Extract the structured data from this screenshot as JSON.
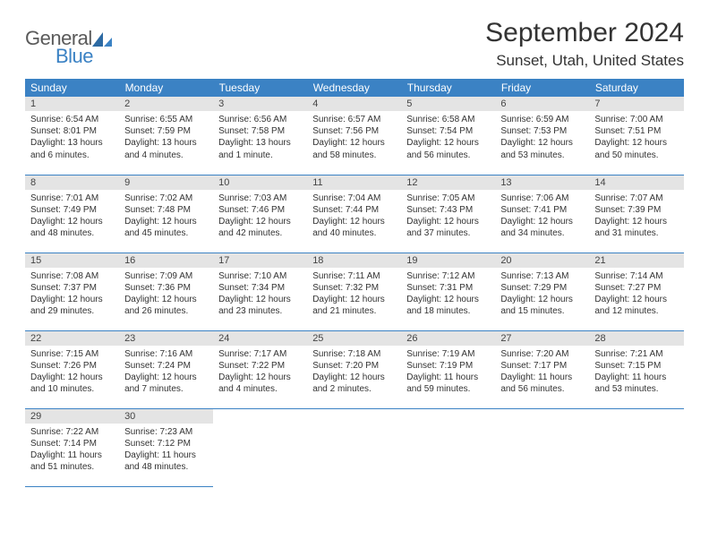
{
  "brand": {
    "general": "General",
    "blue": "Blue"
  },
  "title": {
    "month": "September 2024",
    "location": "Sunset, Utah, United States"
  },
  "colors": {
    "header_bg": "#3b82c4",
    "header_fg": "#ffffff",
    "daynum_bg": "#e4e4e4",
    "rule": "#3b82c4",
    "text": "#333333",
    "logo_gray": "#5a5a5a",
    "logo_blue": "#3b82c4"
  },
  "weekdays": [
    "Sunday",
    "Monday",
    "Tuesday",
    "Wednesday",
    "Thursday",
    "Friday",
    "Saturday"
  ],
  "days": [
    {
      "n": "1",
      "sr": "6:54 AM",
      "ss": "8:01 PM",
      "dl": "13 hours and 6 minutes."
    },
    {
      "n": "2",
      "sr": "6:55 AM",
      "ss": "7:59 PM",
      "dl": "13 hours and 4 minutes."
    },
    {
      "n": "3",
      "sr": "6:56 AM",
      "ss": "7:58 PM",
      "dl": "13 hours and 1 minute."
    },
    {
      "n": "4",
      "sr": "6:57 AM",
      "ss": "7:56 PM",
      "dl": "12 hours and 58 minutes."
    },
    {
      "n": "5",
      "sr": "6:58 AM",
      "ss": "7:54 PM",
      "dl": "12 hours and 56 minutes."
    },
    {
      "n": "6",
      "sr": "6:59 AM",
      "ss": "7:53 PM",
      "dl": "12 hours and 53 minutes."
    },
    {
      "n": "7",
      "sr": "7:00 AM",
      "ss": "7:51 PM",
      "dl": "12 hours and 50 minutes."
    },
    {
      "n": "8",
      "sr": "7:01 AM",
      "ss": "7:49 PM",
      "dl": "12 hours and 48 minutes."
    },
    {
      "n": "9",
      "sr": "7:02 AM",
      "ss": "7:48 PM",
      "dl": "12 hours and 45 minutes."
    },
    {
      "n": "10",
      "sr": "7:03 AM",
      "ss": "7:46 PM",
      "dl": "12 hours and 42 minutes."
    },
    {
      "n": "11",
      "sr": "7:04 AM",
      "ss": "7:44 PM",
      "dl": "12 hours and 40 minutes."
    },
    {
      "n": "12",
      "sr": "7:05 AM",
      "ss": "7:43 PM",
      "dl": "12 hours and 37 minutes."
    },
    {
      "n": "13",
      "sr": "7:06 AM",
      "ss": "7:41 PM",
      "dl": "12 hours and 34 minutes."
    },
    {
      "n": "14",
      "sr": "7:07 AM",
      "ss": "7:39 PM",
      "dl": "12 hours and 31 minutes."
    },
    {
      "n": "15",
      "sr": "7:08 AM",
      "ss": "7:37 PM",
      "dl": "12 hours and 29 minutes."
    },
    {
      "n": "16",
      "sr": "7:09 AM",
      "ss": "7:36 PM",
      "dl": "12 hours and 26 minutes."
    },
    {
      "n": "17",
      "sr": "7:10 AM",
      "ss": "7:34 PM",
      "dl": "12 hours and 23 minutes."
    },
    {
      "n": "18",
      "sr": "7:11 AM",
      "ss": "7:32 PM",
      "dl": "12 hours and 21 minutes."
    },
    {
      "n": "19",
      "sr": "7:12 AM",
      "ss": "7:31 PM",
      "dl": "12 hours and 18 minutes."
    },
    {
      "n": "20",
      "sr": "7:13 AM",
      "ss": "7:29 PM",
      "dl": "12 hours and 15 minutes."
    },
    {
      "n": "21",
      "sr": "7:14 AM",
      "ss": "7:27 PM",
      "dl": "12 hours and 12 minutes."
    },
    {
      "n": "22",
      "sr": "7:15 AM",
      "ss": "7:26 PM",
      "dl": "12 hours and 10 minutes."
    },
    {
      "n": "23",
      "sr": "7:16 AM",
      "ss": "7:24 PM",
      "dl": "12 hours and 7 minutes."
    },
    {
      "n": "24",
      "sr": "7:17 AM",
      "ss": "7:22 PM",
      "dl": "12 hours and 4 minutes."
    },
    {
      "n": "25",
      "sr": "7:18 AM",
      "ss": "7:20 PM",
      "dl": "12 hours and 2 minutes."
    },
    {
      "n": "26",
      "sr": "7:19 AM",
      "ss": "7:19 PM",
      "dl": "11 hours and 59 minutes."
    },
    {
      "n": "27",
      "sr": "7:20 AM",
      "ss": "7:17 PM",
      "dl": "11 hours and 56 minutes."
    },
    {
      "n": "28",
      "sr": "7:21 AM",
      "ss": "7:15 PM",
      "dl": "11 hours and 53 minutes."
    },
    {
      "n": "29",
      "sr": "7:22 AM",
      "ss": "7:14 PM",
      "dl": "11 hours and 51 minutes."
    },
    {
      "n": "30",
      "sr": "7:23 AM",
      "ss": "7:12 PM",
      "dl": "11 hours and 48 minutes."
    }
  ],
  "labels": {
    "sunrise": "Sunrise:",
    "sunset": "Sunset:",
    "daylight": "Daylight:"
  },
  "layout": {
    "columns": 7,
    "start_weekday": 0,
    "trailing_empty": 5
  }
}
